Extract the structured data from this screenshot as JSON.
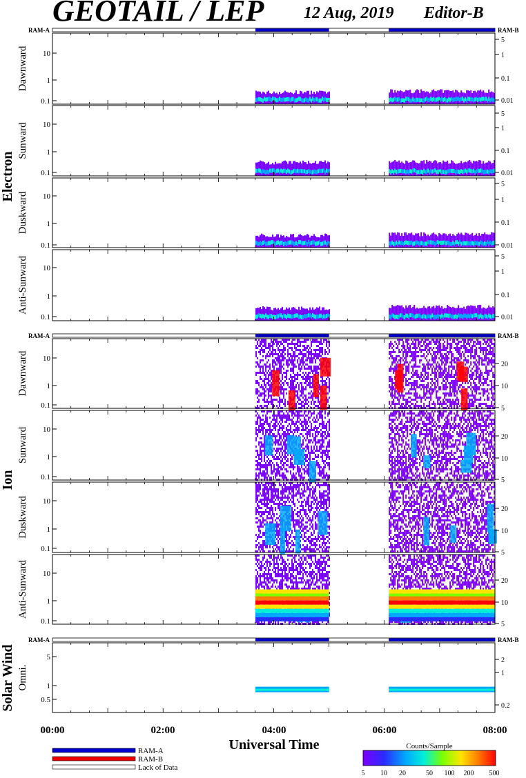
{
  "header": {
    "instrument": "GEOTAIL / LEP",
    "date": "12 Aug, 2019",
    "editor": "Editor-B"
  },
  "strip": {
    "left_label": "RAM-A",
    "right_label": "RAM-B"
  },
  "groups": {
    "electron": "Electron",
    "ion": "Ion",
    "solar_wind": "Solar Wind"
  },
  "x_axis": {
    "label": "Universal Time",
    "ticks": [
      "00:00",
      "02:00",
      "04:00",
      "06:00",
      "08:00"
    ]
  },
  "legend": {
    "ram_a": "RAM-A",
    "ram_b": "RAM-B",
    "lack": "Lack of Data",
    "colorbar_title": "Counts/Sample",
    "colorbar_ticks": [
      "5",
      "10",
      "20",
      "50",
      "100",
      "200",
      "500"
    ]
  },
  "colors": {
    "ram_a": "#0000cc",
    "ram_b": "#ee0000",
    "lack_of_data": "#ffffff",
    "colorscale": [
      "#7a00ff",
      "#2a2cff",
      "#00a8ff",
      "#00f0d8",
      "#7cff00",
      "#ffe400",
      "#ff7a00",
      "#ff0000"
    ]
  },
  "chart_data": {
    "type": "heatmap",
    "x_range_hours": [
      0,
      8
    ],
    "coverage": {
      "ram_a_intervals_hours": [
        [
          3.67,
          5.0
        ],
        [
          6.08,
          8.0
        ]
      ],
      "ram_b_intervals_hours": []
    },
    "panels": [
      {
        "group": "Electron",
        "label": "Dawnward",
        "left_ticks": [
          "10",
          "1",
          "0.1"
        ],
        "right_ticks": [
          "5",
          "1",
          "0.1",
          "0.01"
        ]
      },
      {
        "group": "Electron",
        "label": "Sunward",
        "left_ticks": [
          "10",
          "1",
          "0.1"
        ],
        "right_ticks": [
          "5",
          "1",
          "0.1",
          "0.01"
        ]
      },
      {
        "group": "Electron",
        "label": "Duskward",
        "left_ticks": [
          "10",
          "1",
          "0.1"
        ],
        "right_ticks": [
          "5",
          "1",
          "0.1",
          "0.01"
        ]
      },
      {
        "group": "Electron",
        "label": "Anti-Sunward",
        "left_ticks": [
          "10",
          "1",
          "0.1"
        ],
        "right_ticks": [
          "5",
          "1",
          "0.1",
          "0.01"
        ]
      },
      {
        "group": "Ion",
        "label": "Dawnward",
        "left_ticks": [
          "10",
          "1",
          "0.1"
        ],
        "right_ticks": [
          "20",
          "10",
          "5"
        ]
      },
      {
        "group": "Ion",
        "label": "Sunward",
        "left_ticks": [
          "10",
          "1",
          "0.1"
        ],
        "right_ticks": [
          "20",
          "10",
          "5"
        ]
      },
      {
        "group": "Ion",
        "label": "Duskward",
        "left_ticks": [
          "10",
          "1",
          "0.1"
        ],
        "right_ticks": [
          "20",
          "10",
          "5"
        ]
      },
      {
        "group": "Ion",
        "label": "Anti-Sunward",
        "left_ticks": [
          "10",
          "1",
          "0.1"
        ],
        "right_ticks": [
          "20",
          "10",
          "5"
        ]
      },
      {
        "group": "Solar Wind",
        "label": "Omni.",
        "left_ticks": [
          "5",
          "1",
          "0.5"
        ],
        "right_ticks": [
          "2",
          "1",
          "0.2"
        ]
      }
    ]
  }
}
